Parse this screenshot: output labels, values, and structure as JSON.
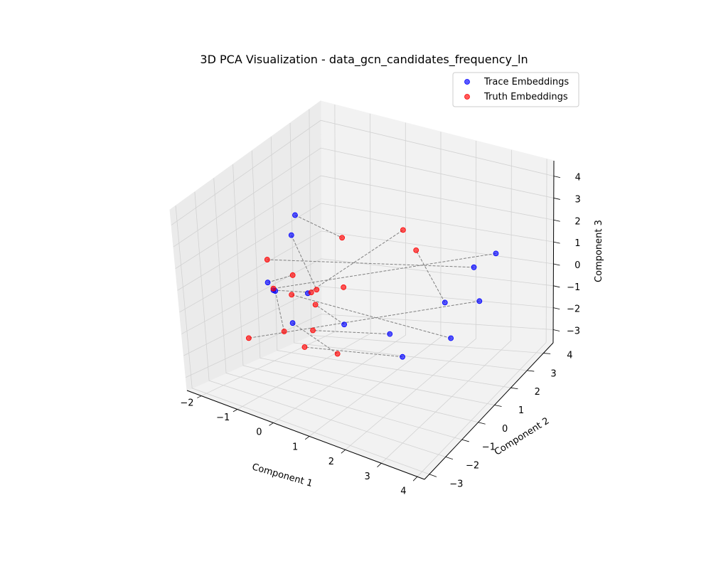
{
  "chart_data": {
    "type": "scatter",
    "dimensions": 3,
    "title": "3D PCA Visualization - data_gcn_candidates_frequency_ln",
    "xlabel": "Component 1",
    "ylabel": "Component 2",
    "zlabel": "Component 3",
    "xlim": [
      -2.4,
      4.2
    ],
    "ylim": [
      -3.3,
      4.6
    ],
    "zlim": [
      -3.6,
      4.7
    ],
    "xticks": [
      "−2",
      "−1",
      "0",
      "1",
      "2",
      "3",
      "4"
    ],
    "yticks": [
      "−3",
      "−2",
      "−1",
      "0",
      "1",
      "2",
      "3",
      "4"
    ],
    "zticks": [
      "−3",
      "−2",
      "−1",
      "0",
      "1",
      "2",
      "3",
      "4"
    ],
    "grid": true,
    "legend": "top-right",
    "series": [
      {
        "name": "Trace Embeddings",
        "color": "#0000ff",
        "points": [
          [
            -2.0,
            2.4,
            1.6
          ],
          [
            -1.3,
            0.8,
            1.8
          ],
          [
            -1.7,
            0.2,
            0.0
          ],
          [
            -1.6,
            0.4,
            -0.4
          ],
          [
            -1.2,
            -0.5,
            0.2
          ],
          [
            -1.1,
            0.3,
            -1.5
          ],
          [
            -0.5,
            0.0,
            0.1
          ],
          [
            1.2,
            -1.5,
            0.3
          ],
          [
            2.3,
            -1.2,
            0.2
          ],
          [
            1.9,
            0.4,
            -1.9
          ],
          [
            3.2,
            0.5,
            -0.7
          ],
          [
            2.3,
            2.1,
            -0.5
          ],
          [
            2.6,
            3.2,
            0.4
          ],
          [
            3.4,
            1.8,
            0.1
          ],
          [
            3.4,
            2.8,
            1.5
          ]
        ]
      },
      {
        "name": "Truth Embeddings",
        "color": "#ff0000",
        "points": [
          [
            -2.3,
            1.4,
            0.2
          ],
          [
            -1.2,
            0.6,
            0.3
          ],
          [
            -1.0,
            0.1,
            -0.2
          ],
          [
            -1.4,
            -0.1,
            0.0
          ],
          [
            -0.5,
            0.5,
            0.0
          ],
          [
            -0.6,
            0.4,
            -0.1
          ],
          [
            -0.3,
            0.0,
            -0.3
          ],
          [
            0.2,
            0.6,
            0.3
          ],
          [
            -1.0,
            -0.4,
            -1.5
          ],
          [
            -0.1,
            -0.6,
            -1.0
          ],
          [
            -0.2,
            -0.9,
            -1.6
          ],
          [
            0.9,
            -1.3,
            -1.2
          ],
          [
            -0.4,
            1.8,
            1.5
          ],
          [
            1.1,
            2.2,
            2.1
          ],
          [
            1.6,
            1.9,
            1.6
          ],
          [
            -0.9,
            -2.6,
            -0.7
          ]
        ]
      }
    ],
    "connectors": {
      "style": "dashed",
      "color": "#808080",
      "pairs": [
        [
          0,
          12
        ],
        [
          1,
          4
        ],
        [
          2,
          1
        ],
        [
          3,
          8
        ],
        [
          4,
          5
        ],
        [
          5,
          11
        ],
        [
          6,
          13
        ],
        [
          7,
          6
        ],
        [
          8,
          9
        ],
        [
          9,
          10
        ],
        [
          10,
          2
        ],
        [
          11,
          14
        ],
        [
          12,
          0
        ],
        [
          13,
          15
        ],
        [
          14,
          3
        ]
      ]
    }
  }
}
